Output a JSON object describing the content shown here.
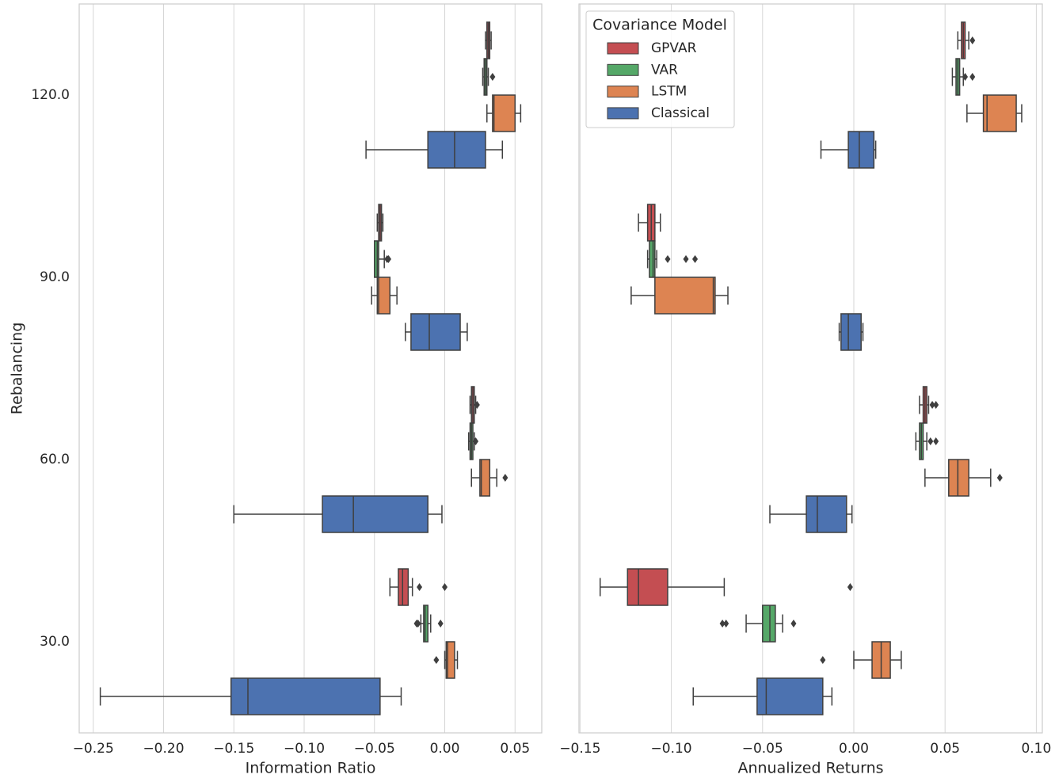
{
  "chart_data": [
    {
      "type": "box",
      "ylabel": "Rebalancing",
      "categories": [
        "120.0",
        "90.0",
        "60.0",
        "30.0"
      ],
      "xlabel": "Information Ratio",
      "xlim": [
        -0.26,
        0.069
      ],
      "xticks": [
        {
          "value": -0.25,
          "label": "−0.25"
        },
        {
          "value": -0.2,
          "label": "−0.20"
        },
        {
          "value": -0.15,
          "label": "−0.15"
        },
        {
          "value": -0.1,
          "label": "−0.10"
        },
        {
          "value": -0.05,
          "label": "−0.05"
        },
        {
          "value": 0,
          "label": "0.00"
        },
        0.05
      ],
      "grid": true,
      "series": [
        {
          "color": "#c44e52",
          "values": [
            {
              "whislo": 0.029,
              "q1": 0.03,
              "med": 0.031,
              "q3": 0.032,
              "whishi": 0.033,
              "fliers": []
            },
            {
              "whislo": -0.048,
              "q1": -0.047,
              "med": -0.046,
              "q3": -0.045,
              "whishi": -0.044,
              "fliers": []
            },
            {
              "whislo": 0.018,
              "q1": 0.019,
              "med": 0.02,
              "q3": 0.021,
              "whishi": 0.022,
              "fliers": [
                0.023
              ]
            },
            {
              "whislo": -0.039,
              "q1": -0.033,
              "med": -0.03,
              "q3": -0.026,
              "whishi": -0.023,
              "fliers": [
                -0.018,
                0.0
              ]
            }
          ]
        },
        {
          "color": "#55a868",
          "values": [
            {
              "whislo": 0.027,
              "q1": 0.028,
              "med": 0.029,
              "q3": 0.03,
              "whishi": 0.031,
              "fliers": [
                0.034
              ]
            },
            {
              "whislo": -0.05,
              "q1": -0.05,
              "med": -0.048,
              "q3": -0.047,
              "whishi": -0.043,
              "fliers": [
                -0.041,
                -0.04
              ]
            },
            {
              "whislo": 0.017,
              "q1": 0.018,
              "med": 0.019,
              "q3": 0.02,
              "whishi": 0.021,
              "fliers": [
                0.022
              ]
            },
            {
              "whislo": -0.017,
              "q1": -0.015,
              "med": -0.014,
              "q3": -0.012,
              "whishi": -0.01,
              "fliers": [
                -0.02,
                -0.019,
                -0.003
              ]
            }
          ]
        },
        {
          "color": "#dd8452",
          "values": [
            {
              "whislo": 0.03,
              "q1": 0.034,
              "med": 0.035,
              "q3": 0.05,
              "whishi": 0.054,
              "fliers": []
            },
            {
              "whislo": -0.052,
              "q1": -0.048,
              "med": -0.047,
              "q3": -0.039,
              "whishi": -0.034,
              "fliers": []
            },
            {
              "whislo": 0.019,
              "q1": 0.025,
              "med": 0.026,
              "q3": 0.032,
              "whishi": 0.037,
              "fliers": [
                0.043
              ]
            },
            {
              "whislo": 0.0,
              "q1": 0.001,
              "med": 0.002,
              "q3": 0.007,
              "whishi": 0.009,
              "fliers": [
                -0.006
              ]
            }
          ]
        },
        {
          "color": "#4c72b0",
          "values": [
            {
              "whislo": -0.056,
              "q1": -0.012,
              "med": 0.007,
              "q3": 0.029,
              "whishi": 0.041,
              "fliers": []
            },
            {
              "whislo": -0.028,
              "q1": -0.024,
              "med": -0.011,
              "q3": 0.011,
              "whishi": 0.016,
              "fliers": []
            },
            {
              "whislo": -0.15,
              "q1": -0.087,
              "med": -0.065,
              "q3": -0.012,
              "whishi": -0.002,
              "fliers": []
            },
            {
              "whislo": -0.245,
              "q1": -0.152,
              "med": -0.14,
              "q3": -0.046,
              "whishi": -0.031,
              "fliers": []
            }
          ]
        }
      ]
    },
    {
      "type": "box",
      "xlabel": "Annualized Returns",
      "xlim": [
        -0.1506,
        0.1033
      ],
      "xticks": [
        {
          "value": -0.15,
          "label": "−0.15"
        },
        {
          "value": -0.1,
          "label": "−0.10"
        },
        {
          "value": -0.05,
          "label": "−0.05"
        },
        {
          "value": 0,
          "label": "0.00"
        },
        0.05,
        {
          "value": 0.1,
          "label": "0.10"
        }
      ],
      "grid": true,
      "legend_title": "Covariance Model",
      "legend": "upper left",
      "series": [
        {
          "name": "GPVAR",
          "color": "#c44e52",
          "values": [
            {
              "whislo": 0.057,
              "q1": 0.059,
              "med": 0.06,
              "q3": 0.061,
              "whishi": 0.063,
              "fliers": [
                0.065
              ]
            },
            {
              "whislo": -0.118,
              "q1": -0.113,
              "med": -0.111,
              "q3": -0.109,
              "whishi": -0.106,
              "fliers": []
            },
            {
              "whislo": 0.036,
              "q1": 0.038,
              "med": 0.039,
              "q3": 0.04,
              "whishi": 0.041,
              "fliers": [
                0.043,
                0.045
              ]
            },
            {
              "whislo": -0.139,
              "q1": -0.124,
              "med": -0.118,
              "q3": -0.102,
              "whishi": -0.071,
              "fliers": [
                -0.002
              ]
            }
          ]
        },
        {
          "name": "VAR",
          "color": "#55a868",
          "values": [
            {
              "whislo": 0.054,
              "q1": 0.056,
              "med": 0.057,
              "q3": 0.058,
              "whishi": 0.06,
              "fliers": [
                0.061,
                0.065
              ]
            },
            {
              "whislo": -0.113,
              "q1": -0.112,
              "med": -0.11,
              "q3": -0.109,
              "whishi": -0.108,
              "fliers": [
                -0.102,
                -0.092,
                -0.087
              ]
            },
            {
              "whislo": 0.034,
              "q1": 0.036,
              "med": 0.037,
              "q3": 0.038,
              "whishi": 0.04,
              "fliers": [
                0.042,
                0.045
              ]
            },
            {
              "whislo": -0.059,
              "q1": -0.05,
              "med": -0.046,
              "q3": -0.043,
              "whishi": -0.039,
              "fliers": [
                -0.072,
                -0.07,
                -0.033
              ]
            }
          ]
        },
        {
          "name": "LSTM",
          "color": "#dd8452",
          "values": [
            {
              "whislo": 0.062,
              "q1": 0.071,
              "med": 0.073,
              "q3": 0.089,
              "whishi": 0.092,
              "fliers": []
            },
            {
              "whislo": -0.122,
              "q1": -0.109,
              "med": -0.077,
              "q3": -0.076,
              "whishi": -0.069,
              "fliers": []
            },
            {
              "whislo": 0.039,
              "q1": 0.052,
              "med": 0.057,
              "q3": 0.063,
              "whishi": 0.075,
              "fliers": [
                0.08
              ]
            },
            {
              "whislo": 0.0,
              "q1": 0.01,
              "med": 0.015,
              "q3": 0.02,
              "whishi": 0.026,
              "fliers": [
                -0.017
              ]
            }
          ]
        },
        {
          "name": "Classical",
          "color": "#4c72b0",
          "values": [
            {
              "whislo": -0.018,
              "q1": -0.003,
              "med": 0.003,
              "q3": 0.011,
              "whishi": 0.012,
              "fliers": []
            },
            {
              "whislo": -0.008,
              "q1": -0.007,
              "med": -0.003,
              "q3": 0.004,
              "whishi": 0.005,
              "fliers": []
            },
            {
              "whislo": -0.046,
              "q1": -0.026,
              "med": -0.02,
              "q3": -0.004,
              "whishi": -0.001,
              "fliers": []
            },
            {
              "whislo": -0.088,
              "q1": -0.053,
              "med": -0.048,
              "q3": -0.017,
              "whishi": -0.012,
              "fliers": []
            }
          ]
        }
      ]
    }
  ]
}
